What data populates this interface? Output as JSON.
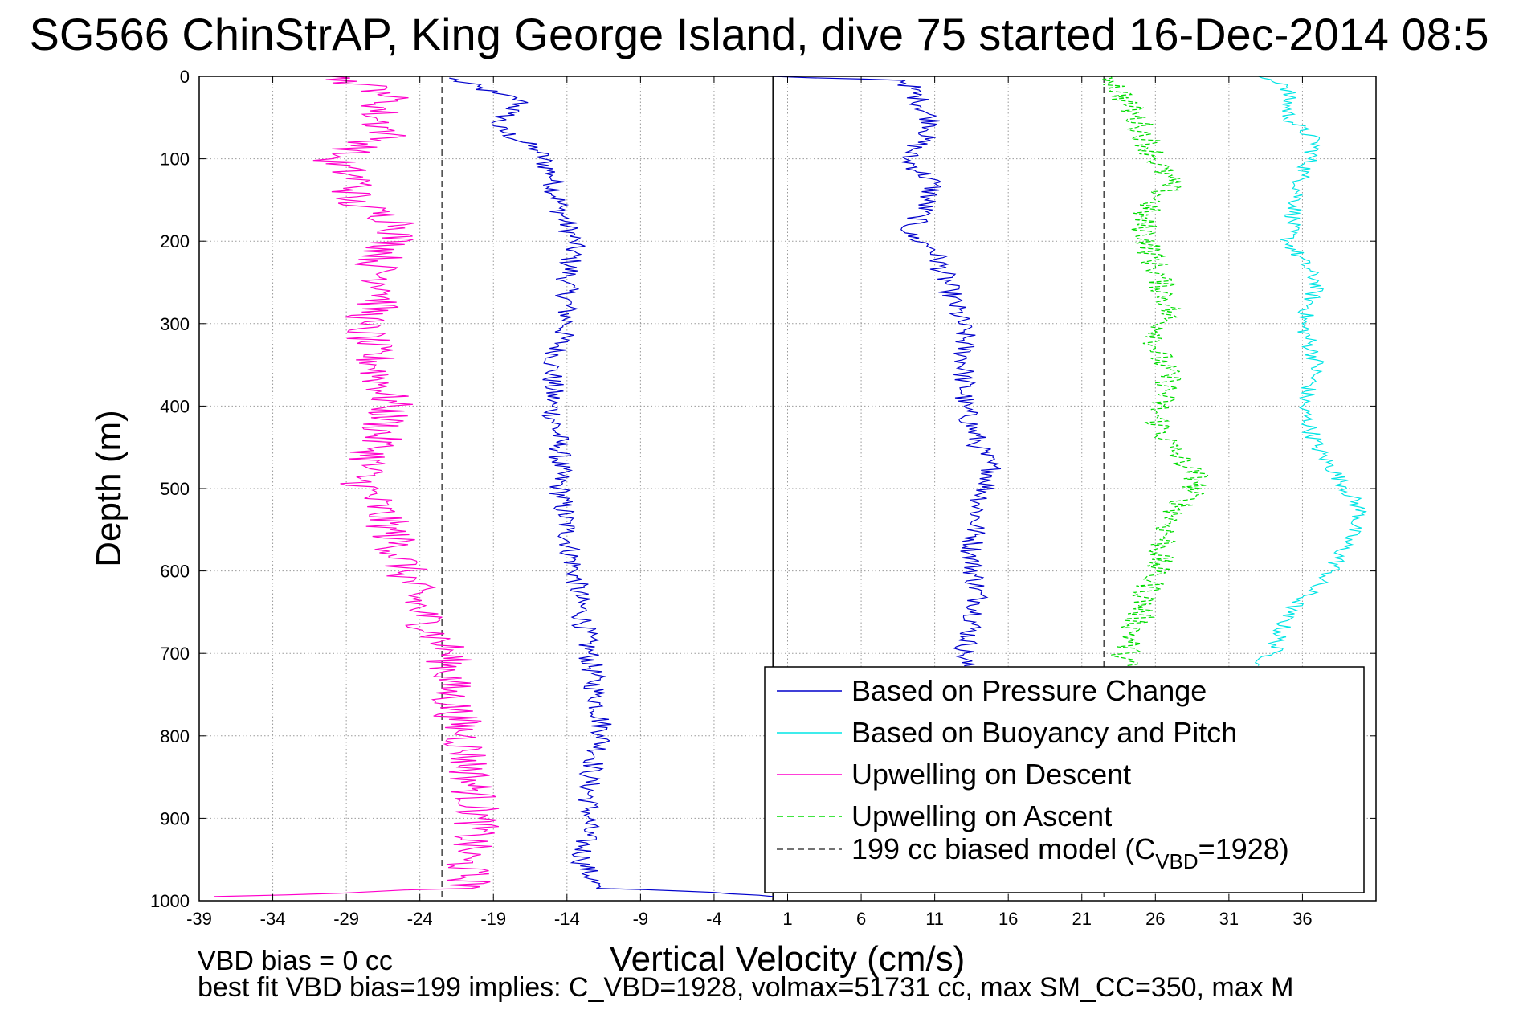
{
  "chart_data": {
    "type": "line",
    "title": "SG566 ChinStrAP, King George Island, dive 75 started 16-Dec-2014 08:5",
    "xlabel": "Vertical Velocity (cm/s)",
    "ylabel": "Depth (m)",
    "xlim": [
      -39,
      41
    ],
    "ylim": [
      1000,
      0
    ],
    "xticks": [
      -39,
      -34,
      -29,
      -24,
      -19,
      -14,
      -9,
      -4,
      1,
      6,
      11,
      16,
      21,
      26,
      31,
      36
    ],
    "yticks": [
      0,
      100,
      200,
      300,
      400,
      500,
      600,
      700,
      800,
      900,
      1000
    ],
    "grid": true,
    "legend_position": "bottom-right",
    "legend": [
      {
        "label": "Based on Pressure Change",
        "color": "#0000cc",
        "style": "solid"
      },
      {
        "label": "Based on Buoyancy and Pitch",
        "color": "#00e5e5",
        "style": "solid"
      },
      {
        "label": "Upwelling on Descent",
        "color": "#ff00cc",
        "style": "solid"
      },
      {
        "label": "Upwelling on Ascent",
        "color": "#00dd00",
        "style": "dashed"
      },
      {
        "label": "199 cc biased model (C",
        "sub": "VBD",
        "suffix": "=1928)",
        "color": "#444444",
        "style": "dashed"
      }
    ],
    "reference_lines": [
      {
        "type": "vertical",
        "x": 0,
        "color": "#000000",
        "style": "solid"
      },
      {
        "type": "vertical",
        "x": -22.5,
        "color": "#444444",
        "style": "dashed"
      },
      {
        "type": "vertical",
        "x": 22.5,
        "color": "#444444",
        "style": "dashed"
      }
    ],
    "series": [
      {
        "name": "Based on Pressure Change",
        "color": "#0000cc",
        "style": "solid",
        "noise": 0.8,
        "points": [
          [
            -22,
            2
          ],
          [
            -19,
            20
          ],
          [
            -17,
            30
          ],
          [
            -18,
            45
          ],
          [
            -19,
            60
          ],
          [
            -16,
            90
          ],
          [
            -15,
            120
          ],
          [
            -14.5,
            160
          ],
          [
            -13.5,
            200
          ],
          [
            -14,
            250
          ],
          [
            -14,
            300
          ],
          [
            -15,
            350
          ],
          [
            -15,
            400
          ],
          [
            -14.5,
            450
          ],
          [
            -14.5,
            500
          ],
          [
            -14,
            550
          ],
          [
            -13.5,
            600
          ],
          [
            -13,
            650
          ],
          [
            -12.5,
            700
          ],
          [
            -12,
            750
          ],
          [
            -11.5,
            800
          ],
          [
            -12.5,
            850
          ],
          [
            -12.5,
            900
          ],
          [
            -13,
            950
          ],
          [
            -12,
            985
          ],
          [
            -4,
            990
          ],
          [
            0,
            995
          ]
        ]
      },
      {
        "name": "Based on Pressure Change (ascent)",
        "color": "#0000cc",
        "style": "solid",
        "noise": 0.8,
        "points": [
          [
            0,
            0
          ],
          [
            9,
            5
          ],
          [
            10,
            30
          ],
          [
            11,
            60
          ],
          [
            9,
            100
          ],
          [
            11,
            130
          ],
          [
            10,
            170
          ],
          [
            9,
            190
          ],
          [
            11,
            210
          ],
          [
            12,
            260
          ],
          [
            13,
            310
          ],
          [
            13,
            360
          ],
          [
            13,
            400
          ],
          [
            14,
            450
          ],
          [
            15,
            480
          ],
          [
            14,
            520
          ],
          [
            13.5,
            580
          ],
          [
            14,
            640
          ],
          [
            13,
            700
          ],
          [
            13,
            715
          ]
        ]
      },
      {
        "name": "Based on Buoyancy and Pitch",
        "color": "#00e5e5",
        "style": "solid",
        "noise": 0.6,
        "points": [
          [
            33,
            0
          ],
          [
            35,
            10
          ],
          [
            35,
            50
          ],
          [
            37,
            80
          ],
          [
            36,
            120
          ],
          [
            35,
            200
          ],
          [
            37,
            250
          ],
          [
            36,
            300
          ],
          [
            37,
            350
          ],
          [
            36,
            400
          ],
          [
            37,
            450
          ],
          [
            39,
            500
          ],
          [
            40,
            530
          ],
          [
            38,
            600
          ],
          [
            35,
            650
          ],
          [
            34,
            700
          ],
          [
            33,
            715
          ]
        ]
      },
      {
        "name": "Upwelling on Descent",
        "color": "#ff00cc",
        "style": "solid",
        "noise": 1.6,
        "points": [
          [
            -30,
            0
          ],
          [
            -26,
            20
          ],
          [
            -27,
            50
          ],
          [
            -26,
            70
          ],
          [
            -30,
            100
          ],
          [
            -28,
            130
          ],
          [
            -29,
            150
          ],
          [
            -25,
            180
          ],
          [
            -27,
            230
          ],
          [
            -26,
            260
          ],
          [
            -28,
            300
          ],
          [
            -27,
            350
          ],
          [
            -26,
            400
          ],
          [
            -27,
            450
          ],
          [
            -28,
            490
          ],
          [
            -26,
            550
          ],
          [
            -25,
            600
          ],
          [
            -24,
            650
          ],
          [
            -22,
            700
          ],
          [
            -22,
            750
          ],
          [
            -21,
            800
          ],
          [
            -20.5,
            850
          ],
          [
            -20,
            900
          ],
          [
            -21,
            950
          ],
          [
            -20.5,
            985
          ],
          [
            -38,
            995
          ]
        ]
      },
      {
        "name": "Upwelling on Ascent",
        "color": "#00dd00",
        "style": "dashed",
        "noise": 1.0,
        "points": [
          [
            23,
            0
          ],
          [
            24,
            30
          ],
          [
            25,
            60
          ],
          [
            26,
            100
          ],
          [
            27,
            130
          ],
          [
            25,
            170
          ],
          [
            26,
            230
          ],
          [
            27,
            280
          ],
          [
            26,
            330
          ],
          [
            27,
            370
          ],
          [
            26,
            410
          ],
          [
            27,
            450
          ],
          [
            29,
            490
          ],
          [
            27,
            540
          ],
          [
            26,
            600
          ],
          [
            25,
            650
          ],
          [
            24,
            700
          ],
          [
            24,
            715
          ]
        ]
      }
    ]
  },
  "footer": {
    "line1": "VBD bias = 0 cc",
    "line2": "best fit VBD bias=199 implies: C_VBD=1928, volmax=51731 cc, max SM_CC=350, max M"
  }
}
